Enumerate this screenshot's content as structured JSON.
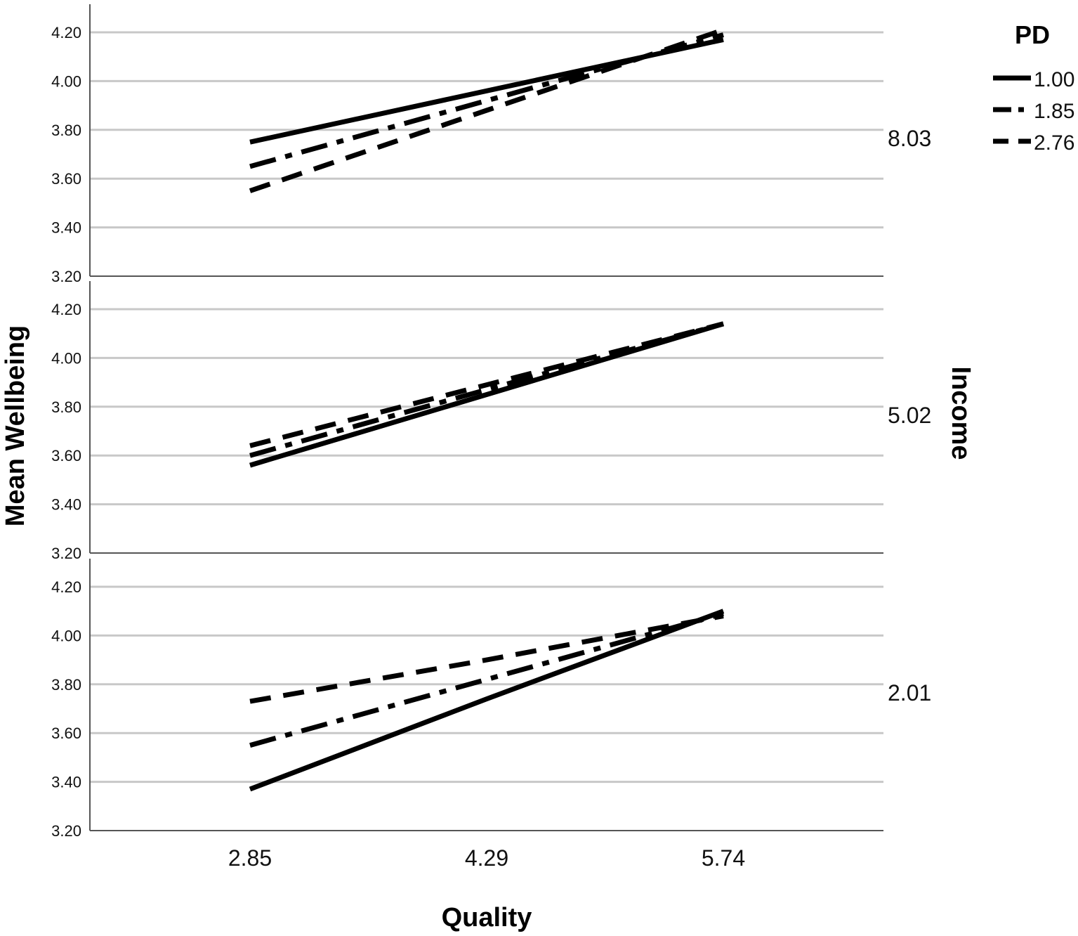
{
  "chart_data": {
    "type": "line",
    "xlabel": "Quality",
    "ylabel": "Mean Wellbeing",
    "panel_variable": "Income",
    "legend_title": "PD",
    "legend_placement": "top-right",
    "grid": true,
    "categories": [
      "2.85",
      "4.29",
      "5.74"
    ],
    "ylim": [
      3.2,
      4.2
    ],
    "yticks": [
      "3.20",
      "3.40",
      "3.60",
      "3.80",
      "4.00",
      "4.20"
    ],
    "legend": [
      {
        "label": "1.00",
        "dash": "solid"
      },
      {
        "label": "1.85",
        "dash": "dashdot"
      },
      {
        "label": "2.76",
        "dash": "dashed"
      }
    ],
    "panels": [
      {
        "label": "8.03",
        "series": [
          {
            "name": "1.00",
            "values": [
              3.75,
              3.96,
              4.17
            ]
          },
          {
            "name": "1.85",
            "values": [
              3.65,
              3.92,
              4.19
            ]
          },
          {
            "name": "2.76",
            "values": [
              3.55,
              3.88,
              4.21
            ]
          }
        ]
      },
      {
        "label": "5.02",
        "series": [
          {
            "name": "1.00",
            "values": [
              3.56,
              3.85,
              4.14
            ]
          },
          {
            "name": "1.85",
            "values": [
              3.6,
              3.87,
              4.14
            ]
          },
          {
            "name": "2.76",
            "values": [
              3.64,
              3.89,
              4.14
            ]
          }
        ]
      },
      {
        "label": "2.01",
        "series": [
          {
            "name": "1.00",
            "values": [
              3.37,
              3.74,
              4.1
            ]
          },
          {
            "name": "1.85",
            "values": [
              3.55,
              3.82,
              4.09
            ]
          },
          {
            "name": "2.76",
            "values": [
              3.73,
              3.9,
              4.08
            ]
          }
        ]
      }
    ]
  }
}
